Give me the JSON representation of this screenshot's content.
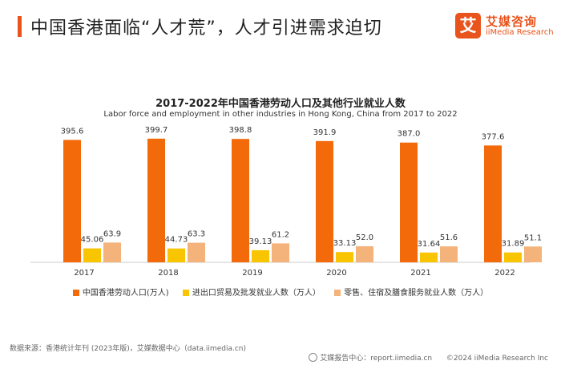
{
  "header": {
    "title": "中国香港面临“人才荒”，人才引进需求迫切",
    "logo": {
      "mark": "艾",
      "name": "艾媒咨询",
      "name_en": "iiMedia Research"
    }
  },
  "chart_data": {
    "type": "bar",
    "title": "2017-2022年中国香港劳动人口及其他行业就业人数",
    "subtitle": "Labor force and employment in other industries in Hong Kong, China from 2017 to 2022",
    "categories": [
      "2017",
      "2018",
      "2019",
      "2020",
      "2021",
      "2022"
    ],
    "series": [
      {
        "name": "中国香港劳动人口(万人)",
        "color": "#f36a0b",
        "values": [
          395.6,
          399.7,
          398.8,
          391.9,
          387.0,
          377.6
        ],
        "labels": [
          "395.6",
          "399.7",
          "398.8",
          "391.9",
          "387.0",
          "377.6"
        ]
      },
      {
        "name": "进出口贸易及批发就业人数（万人）",
        "color": "#f9c400",
        "values": [
          45.06,
          44.73,
          39.13,
          33.13,
          31.64,
          31.89
        ],
        "labels": [
          "45.06",
          "44.73",
          "39.13",
          "33.13",
          "31.64",
          "31.89"
        ]
      },
      {
        "name": "零售、住宿及膳食服务就业人数（万人）",
        "color": "#f3b37a",
        "values": [
          63.9,
          63.3,
          61.2,
          52.0,
          51.6,
          51.1
        ],
        "labels": [
          "63.9",
          "63.3",
          "61.2",
          "52.0",
          "51.6",
          "51.1"
        ]
      }
    ],
    "xlabel": "",
    "ylabel": "",
    "ylim": [
      0,
      420
    ],
    "grid": false,
    "legend": "bottom"
  },
  "footer": {
    "source": "数据来源：香港统计年刊 (2023年版)，艾媒数据中心（data.iimedia.cn)",
    "center": "艾媒报告中心：report.iimedia.cn",
    "copyright": "©2024  iiMedia Research  Inc"
  }
}
